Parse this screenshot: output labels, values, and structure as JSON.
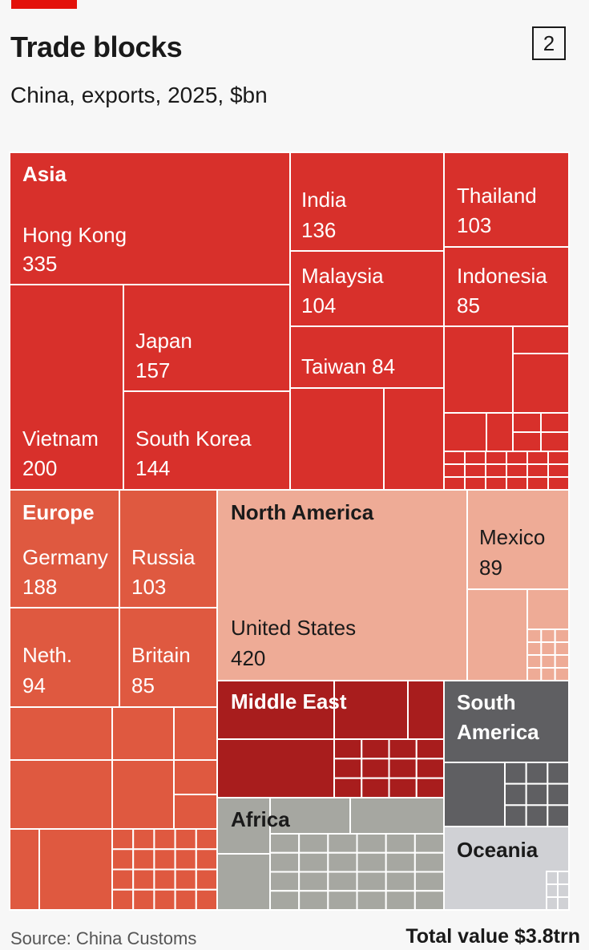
{
  "header": {
    "title": "Trade blocks",
    "badge": "2",
    "subtitle": "China, exports, 2025, $bn"
  },
  "footer": {
    "source": "Source: China Customs",
    "total": "Total value $3.8trn"
  },
  "colors": {
    "accent": "#e3120b",
    "asia": "#d8302b",
    "europe": "#df5940",
    "north_america": "#eeab96",
    "middle_east": "#a81d1d",
    "south_america": "#5f5f62",
    "africa": "#a6a7a1",
    "oceania": "#d0d1d5"
  },
  "chart_data": {
    "type": "treemap",
    "title": "Trade blocks",
    "subtitle": "China, exports, 2025, $bn",
    "total": "$3.8trn",
    "groups": [
      {
        "name": "Asia",
        "labeled": [
          {
            "name": "Hong Kong",
            "value": 335
          },
          {
            "name": "Vietnam",
            "value": 200
          },
          {
            "name": "Japan",
            "value": 157
          },
          {
            "name": "South Korea",
            "value": 144
          },
          {
            "name": "India",
            "value": 136
          },
          {
            "name": "Malaysia",
            "value": 104
          },
          {
            "name": "Thailand",
            "value": 103
          },
          {
            "name": "Indonesia",
            "value": 85
          },
          {
            "name": "Taiwan",
            "value": 84
          }
        ]
      },
      {
        "name": "Europe",
        "labeled": [
          {
            "name": "Germany",
            "value": 188
          },
          {
            "name": "Russia",
            "value": 103
          },
          {
            "name": "Neth.",
            "value": 94
          },
          {
            "name": "Britain",
            "value": 85
          }
        ]
      },
      {
        "name": "North America",
        "labeled": [
          {
            "name": "United States",
            "value": 420
          },
          {
            "name": "Mexico",
            "value": 89
          }
        ]
      },
      {
        "name": "Middle East",
        "labeled": []
      },
      {
        "name": "South America",
        "labeled": []
      },
      {
        "name": "Africa",
        "labeled": []
      },
      {
        "name": "Oceania",
        "labeled": []
      }
    ]
  }
}
